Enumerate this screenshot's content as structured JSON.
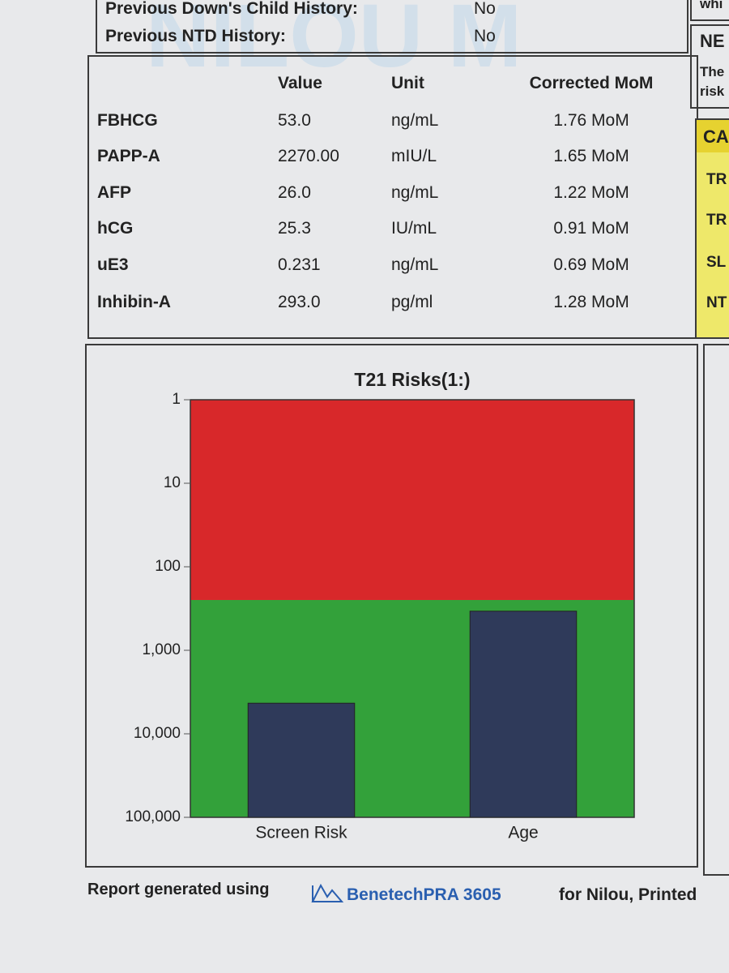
{
  "header": {
    "rows": [
      [
        "Previous Down's Child History:",
        "No"
      ],
      [
        "Previous NTD History:",
        "No"
      ]
    ]
  },
  "watermark": "NILOU M",
  "table": {
    "columns": [
      "Value",
      "Unit",
      "Corrected MoM"
    ],
    "rows": [
      [
        "FBHCG",
        "53.0",
        "ng/mL",
        "1.76 MoM"
      ],
      [
        "PAPP-A",
        "2270.00",
        "mIU/L",
        "1.65 MoM"
      ],
      [
        "AFP",
        "26.0",
        "ng/mL",
        "1.22 MoM"
      ],
      [
        "hCG",
        "25.3",
        "IU/mL",
        "0.91 MoM"
      ],
      [
        "uE3",
        "0.231",
        "ng/mL",
        "0.69 MoM"
      ],
      [
        "Inhibin-A",
        "293.0",
        "pg/ml",
        "1.28 MoM"
      ]
    ]
  },
  "right_panel": {
    "top": "whi",
    "heading": "NE",
    "text": [
      "The",
      "risk"
    ],
    "yellow_header": "CA",
    "yellow_rows": [
      "TR",
      "TR",
      "SL",
      "NT"
    ]
  },
  "chart_data": {
    "type": "bar",
    "title": "T21 Risks(1:)",
    "categories": [
      "Screen Risk",
      "Age"
    ],
    "values": [
      4300,
      340
    ],
    "color": "#2f3a5a",
    "log_scale": true,
    "y_inverted": true,
    "ylim": [
      1,
      100000
    ],
    "yticks": [
      1,
      10,
      100,
      {
        "value": 1000,
        "label": "1,000"
      },
      {
        "value": 10000,
        "label": "10,000"
      },
      {
        "value": 100000,
        "label": "100,000"
      }
    ],
    "bands": [
      {
        "from": 1,
        "to": 250,
        "color": "#d8282a"
      },
      {
        "from": 250,
        "to": 100000,
        "color": "#33a13a"
      }
    ]
  },
  "footer": {
    "prefix": "Report generated using",
    "product": "BenetechPRA 3605",
    "suffix": "for Nilou, Printed"
  }
}
